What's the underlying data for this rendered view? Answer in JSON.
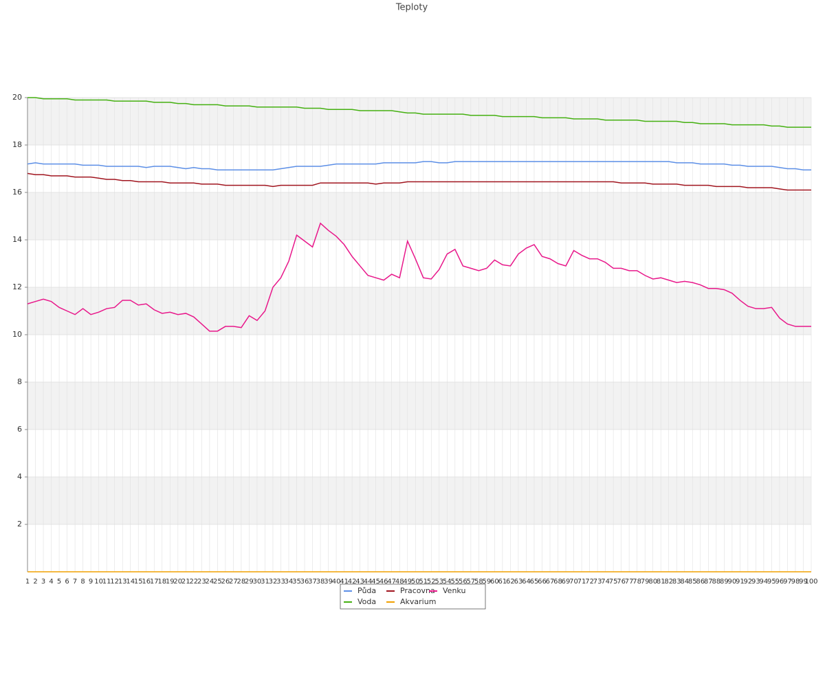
{
  "chart_data": {
    "type": "line",
    "title": "Teploty",
    "categories": [
      1,
      2,
      3,
      4,
      5,
      6,
      7,
      8,
      9,
      10,
      11,
      12,
      13,
      14,
      15,
      16,
      17,
      18,
      19,
      20,
      21,
      22,
      23,
      24,
      25,
      26,
      27,
      28,
      29,
      30,
      31,
      32,
      33,
      34,
      35,
      36,
      37,
      38,
      39,
      40,
      41,
      42,
      43,
      44,
      45,
      46,
      47,
      48,
      49,
      50,
      51,
      52,
      53,
      54,
      55,
      56,
      57,
      58,
      59,
      60,
      61,
      62,
      63,
      64,
      65,
      66,
      67,
      68,
      69,
      70,
      71,
      72,
      73,
      74,
      75,
      76,
      77,
      78,
      79,
      80,
      81,
      82,
      83,
      84,
      85,
      86,
      87,
      88,
      89,
      90,
      91,
      92,
      93,
      94,
      95,
      96,
      97,
      98,
      99,
      100
    ],
    "ylim": [
      0,
      20
    ],
    "yticks": [
      2,
      4,
      6,
      8,
      10,
      12,
      14,
      16,
      18,
      20
    ],
    "grid": true,
    "series": [
      {
        "name": "Půda",
        "color": "#5b8ee6",
        "values": [
          17.2,
          17.25,
          17.2,
          17.2,
          17.2,
          17.2,
          17.2,
          17.15,
          17.15,
          17.15,
          17.1,
          17.1,
          17.1,
          17.1,
          17.1,
          17.05,
          17.1,
          17.1,
          17.1,
          17.05,
          17.0,
          17.05,
          17.0,
          17.0,
          16.95,
          16.95,
          16.95,
          16.95,
          16.95,
          16.95,
          16.95,
          16.95,
          17.0,
          17.05,
          17.1,
          17.1,
          17.1,
          17.1,
          17.15,
          17.2,
          17.2,
          17.2,
          17.2,
          17.2,
          17.2,
          17.25,
          17.25,
          17.25,
          17.25,
          17.25,
          17.3,
          17.3,
          17.25,
          17.25,
          17.3,
          17.3,
          17.3,
          17.3,
          17.3,
          17.3,
          17.3,
          17.3,
          17.3,
          17.3,
          17.3,
          17.3,
          17.3,
          17.3,
          17.3,
          17.3,
          17.3,
          17.3,
          17.3,
          17.3,
          17.3,
          17.3,
          17.3,
          17.3,
          17.3,
          17.3,
          17.3,
          17.3,
          17.25,
          17.25,
          17.25,
          17.2,
          17.2,
          17.2,
          17.2,
          17.15,
          17.15,
          17.1,
          17.1,
          17.1,
          17.1,
          17.05,
          17.0,
          17.0,
          16.95,
          16.95
        ]
      },
      {
        "name": "Voda",
        "color": "#44b010",
        "values": [
          20.0,
          20.0,
          19.95,
          19.95,
          19.95,
          19.95,
          19.9,
          19.9,
          19.9,
          19.9,
          19.9,
          19.85,
          19.85,
          19.85,
          19.85,
          19.85,
          19.8,
          19.8,
          19.8,
          19.75,
          19.75,
          19.7,
          19.7,
          19.7,
          19.7,
          19.65,
          19.65,
          19.65,
          19.65,
          19.6,
          19.6,
          19.6,
          19.6,
          19.6,
          19.6,
          19.55,
          19.55,
          19.55,
          19.5,
          19.5,
          19.5,
          19.5,
          19.45,
          19.45,
          19.45,
          19.45,
          19.45,
          19.4,
          19.35,
          19.35,
          19.3,
          19.3,
          19.3,
          19.3,
          19.3,
          19.3,
          19.25,
          19.25,
          19.25,
          19.25,
          19.2,
          19.2,
          19.2,
          19.2,
          19.2,
          19.15,
          19.15,
          19.15,
          19.15,
          19.1,
          19.1,
          19.1,
          19.1,
          19.05,
          19.05,
          19.05,
          19.05,
          19.05,
          19.0,
          19.0,
          19.0,
          19.0,
          19.0,
          18.95,
          18.95,
          18.9,
          18.9,
          18.9,
          18.9,
          18.85,
          18.85,
          18.85,
          18.85,
          18.85,
          18.8,
          18.8,
          18.75,
          18.75,
          18.75,
          18.75
        ]
      },
      {
        "name": "Pracovna",
        "color": "#a0141e",
        "values": [
          16.8,
          16.75,
          16.75,
          16.7,
          16.7,
          16.7,
          16.65,
          16.65,
          16.65,
          16.6,
          16.55,
          16.55,
          16.5,
          16.5,
          16.45,
          16.45,
          16.45,
          16.45,
          16.4,
          16.4,
          16.4,
          16.4,
          16.35,
          16.35,
          16.35,
          16.3,
          16.3,
          16.3,
          16.3,
          16.3,
          16.3,
          16.25,
          16.3,
          16.3,
          16.3,
          16.3,
          16.3,
          16.4,
          16.4,
          16.4,
          16.4,
          16.4,
          16.4,
          16.4,
          16.35,
          16.4,
          16.4,
          16.4,
          16.45,
          16.45,
          16.45,
          16.45,
          16.45,
          16.45,
          16.45,
          16.45,
          16.45,
          16.45,
          16.45,
          16.45,
          16.45,
          16.45,
          16.45,
          16.45,
          16.45,
          16.45,
          16.45,
          16.45,
          16.45,
          16.45,
          16.45,
          16.45,
          16.45,
          16.45,
          16.45,
          16.4,
          16.4,
          16.4,
          16.4,
          16.35,
          16.35,
          16.35,
          16.35,
          16.3,
          16.3,
          16.3,
          16.3,
          16.25,
          16.25,
          16.25,
          16.25,
          16.2,
          16.2,
          16.2,
          16.2,
          16.15,
          16.1,
          16.1,
          16.1,
          16.1
        ]
      },
      {
        "name": "Akvarium",
        "color": "#f0a000",
        "values": [
          0,
          0,
          0,
          0,
          0,
          0,
          0,
          0,
          0,
          0,
          0,
          0,
          0,
          0,
          0,
          0,
          0,
          0,
          0,
          0,
          0,
          0,
          0,
          0,
          0,
          0,
          0,
          0,
          0,
          0,
          0,
          0,
          0,
          0,
          0,
          0,
          0,
          0,
          0,
          0,
          0,
          0,
          0,
          0,
          0,
          0,
          0,
          0,
          0,
          0,
          0,
          0,
          0,
          0,
          0,
          0,
          0,
          0,
          0,
          0,
          0,
          0,
          0,
          0,
          0,
          0,
          0,
          0,
          0,
          0,
          0,
          0,
          0,
          0,
          0,
          0,
          0,
          0,
          0,
          0,
          0,
          0,
          0,
          0,
          0,
          0,
          0,
          0,
          0,
          0,
          0,
          0,
          0,
          0,
          0,
          0,
          0,
          0,
          0,
          0
        ]
      },
      {
        "name": "Venku",
        "color": "#e8178a",
        "values": [
          11.3,
          11.4,
          11.5,
          11.4,
          11.15,
          11.0,
          10.85,
          11.1,
          10.85,
          10.95,
          11.1,
          11.15,
          11.45,
          11.45,
          11.25,
          11.3,
          11.05,
          10.9,
          10.95,
          10.85,
          10.9,
          10.75,
          10.45,
          10.15,
          10.15,
          10.35,
          10.35,
          10.3,
          10.8,
          10.6,
          11.0,
          12.0,
          12.4,
          13.1,
          14.2,
          13.95,
          13.7,
          14.7,
          14.4,
          14.15,
          13.8,
          13.3,
          12.9,
          12.5,
          12.4,
          12.3,
          12.55,
          12.4,
          13.95,
          13.2,
          12.4,
          12.35,
          12.75,
          13.4,
          13.6,
          12.9,
          12.8,
          12.7,
          12.8,
          13.15,
          12.95,
          12.9,
          13.4,
          13.65,
          13.8,
          13.3,
          13.2,
          13.0,
          12.9,
          13.55,
          13.35,
          13.2,
          13.2,
          13.05,
          12.8,
          12.8,
          12.7,
          12.7,
          12.5,
          12.35,
          12.4,
          12.3,
          12.2,
          12.25,
          12.2,
          12.1,
          11.95,
          11.95,
          11.9,
          11.75,
          11.45,
          11.2,
          11.1,
          11.1,
          11.15,
          10.7,
          10.45,
          10.35,
          10.35,
          10.35
        ]
      }
    ]
  }
}
